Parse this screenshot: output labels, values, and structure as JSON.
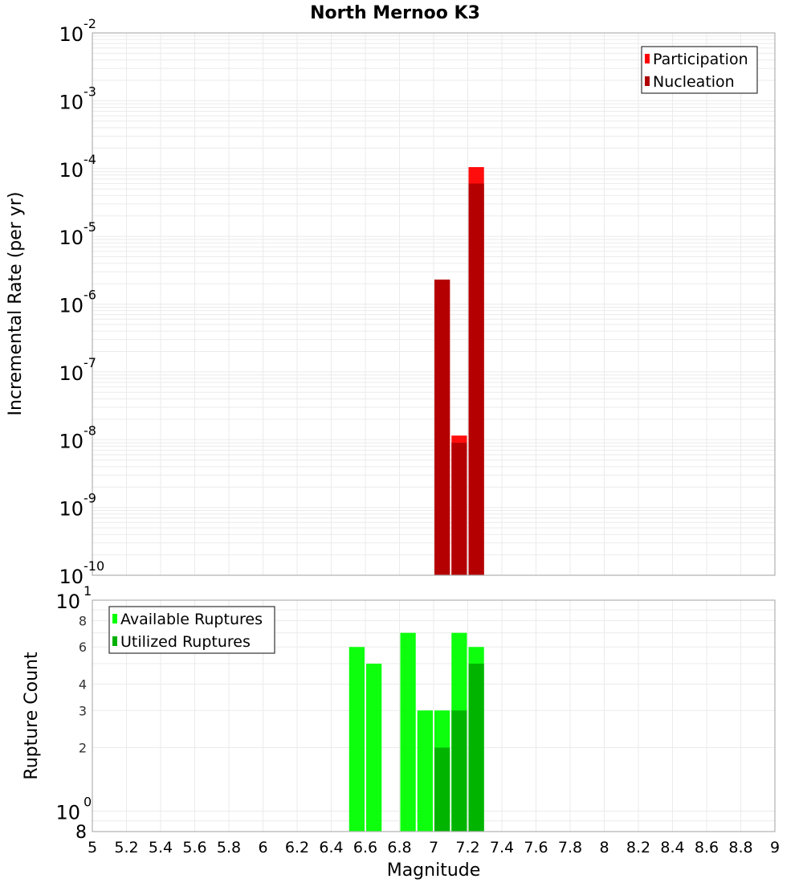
{
  "chart_data": [
    {
      "type": "bar",
      "title": "North Mernoo K3",
      "xlabel": "Magnitude",
      "ylabel": "Incremental Rate (per yr)",
      "yscale": "log",
      "xlim": [
        5,
        9
      ],
      "ylim": [
        1e-10,
        0.01
      ],
      "y_tick_labels": [
        {
          "base": "10",
          "exp": "-2",
          "value": 0.01
        },
        {
          "base": "10",
          "exp": "-3",
          "value": 0.001
        },
        {
          "base": "10",
          "exp": "-4",
          "value": 0.0001
        },
        {
          "base": "10",
          "exp": "-5",
          "value": 1e-05
        },
        {
          "base": "10",
          "exp": "-6",
          "value": 1e-06
        },
        {
          "base": "10",
          "exp": "-7",
          "value": 1e-07
        },
        {
          "base": "10",
          "exp": "-8",
          "value": 1e-08
        },
        {
          "base": "10",
          "exp": "-9",
          "value": 1e-09
        },
        {
          "base": "10",
          "exp": "-10",
          "value": 1e-10
        }
      ],
      "grid": true,
      "legend_position": "top-right",
      "bin_width": 0.1,
      "categories": [
        7.05,
        7.15,
        7.25
      ],
      "series": [
        {
          "name": "Participation",
          "color": "#ff0000",
          "values": [
            2.3e-06,
            1.15e-08,
            0.000105
          ]
        },
        {
          "name": "Nucleation",
          "color": "#b00000",
          "values": [
            2.3e-06,
            9e-09,
            6e-05
          ]
        }
      ]
    },
    {
      "type": "bar",
      "title": "",
      "xlabel": "Magnitude",
      "ylabel": "Rupture Count",
      "yscale": "log",
      "xlim": [
        5,
        9
      ],
      "ylim": [
        0.8,
        10
      ],
      "y_tick_labels": [
        {
          "label": "10",
          "exp": "1",
          "value": 10,
          "major": true
        },
        {
          "label": "8",
          "value": 8
        },
        {
          "label": "6",
          "value": 6
        },
        {
          "label": "4",
          "value": 4
        },
        {
          "label": "3",
          "value": 3
        },
        {
          "label": "2",
          "value": 2
        },
        {
          "label": "10",
          "exp": "0",
          "value": 1,
          "major": true
        },
        {
          "label": "8",
          "value": 0.8,
          "major": true
        }
      ],
      "x_tick_labels": [
        "5",
        "5.2",
        "5.4",
        "5.6",
        "5.8",
        "6",
        "6.2",
        "6.4",
        "6.6",
        "6.8",
        "7",
        "7.2",
        "7.4",
        "7.6",
        "7.8",
        "8",
        "8.2",
        "8.4",
        "8.6",
        "8.8",
        "9"
      ],
      "grid": true,
      "legend_position": "top-left",
      "bin_width": 0.1,
      "categories": [
        6.55,
        6.65,
        6.85,
        6.95,
        7.05,
        7.15,
        7.25
      ],
      "series": [
        {
          "name": "Available Ruptures",
          "color": "#00ff00",
          "values": [
            6,
            5,
            7,
            3,
            3,
            7,
            6
          ]
        },
        {
          "name": "Utilized Ruptures",
          "color": "#00b000",
          "values": [
            0,
            0,
            0,
            0,
            2,
            3,
            5
          ]
        }
      ]
    }
  ]
}
